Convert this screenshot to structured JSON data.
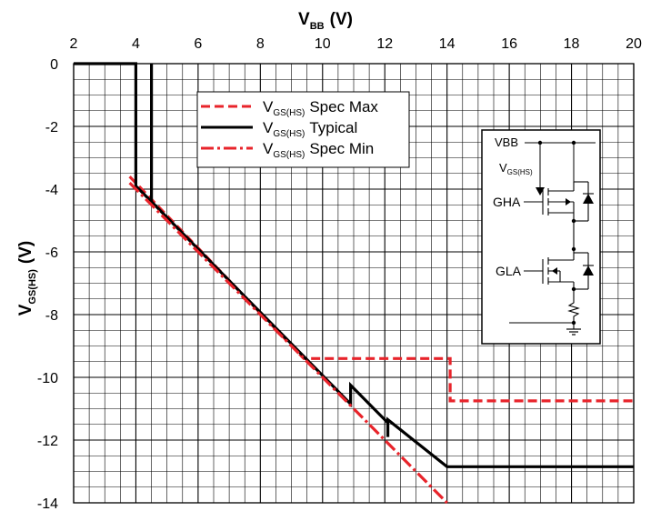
{
  "chart_data": {
    "type": "line",
    "xlabel": {
      "main": "V",
      "sub": "BB",
      "unit": "(V)"
    },
    "ylabel": {
      "main": "V",
      "sub": "GS(HS)",
      "unit": "(V)"
    },
    "xlim": [
      2,
      20
    ],
    "ylim": [
      -14,
      0
    ],
    "xticks": [
      "2",
      "4",
      "6",
      "8",
      "10",
      "12",
      "14",
      "16",
      "18",
      "20"
    ],
    "yticks": [
      "0",
      "-2",
      "-4",
      "-6",
      "-8",
      "-10",
      "-12",
      "-14"
    ],
    "grid": true,
    "legend_position": "top-center",
    "series": [
      {
        "name": "Spec Max",
        "name_prefix": "V",
        "name_sub": "GS(HS)",
        "style": "dashed",
        "color": "#e8242b",
        "points": [
          [
            3.8,
            -3.6
          ],
          [
            9.4,
            -9.4
          ],
          [
            14.1,
            -9.4
          ],
          [
            14.1,
            -10.75
          ],
          [
            20,
            -10.75
          ]
        ]
      },
      {
        "name": "Typical",
        "name_prefix": "V",
        "name_sub": "GS(HS)",
        "style": "solid",
        "color": "#000000",
        "points": [
          [
            2,
            0
          ],
          [
            4,
            0
          ],
          [
            4,
            -3.9
          ],
          [
            4.5,
            -4.4
          ],
          [
            4.5,
            0
          ],
          [
            4.5,
            -4.4
          ],
          [
            10.9,
            -10.85
          ],
          [
            10.9,
            -10.25
          ],
          [
            12.1,
            -11.45
          ],
          [
            12.1,
            -11.9
          ],
          [
            12.1,
            -11.35
          ],
          [
            14,
            -12.85
          ],
          [
            20,
            -12.85
          ]
        ]
      },
      {
        "name": "Spec Min",
        "name_prefix": "V",
        "name_sub": "GS(HS)",
        "style": "dash-dot",
        "color": "#e8242b",
        "points": [
          [
            3.8,
            -3.8
          ],
          [
            14,
            -14
          ]
        ]
      }
    ],
    "inset_labels": {
      "vbb": "VBB",
      "vgs_main": "V",
      "vgs_sub": "GS(HS)",
      "gha": "GHA",
      "gla": "GLA"
    }
  }
}
